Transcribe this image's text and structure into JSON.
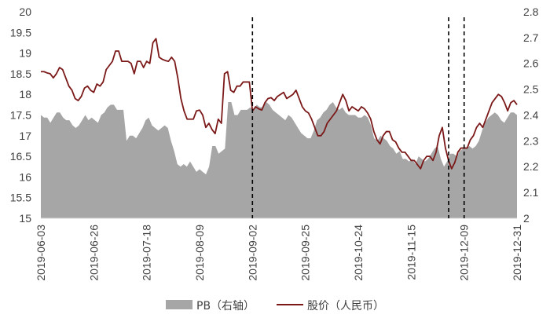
{
  "chart_data": {
    "type": "line",
    "title": "",
    "x_axis": {
      "tick_labels": [
        "2019-06-03",
        "2019-06-26",
        "2019-07-18",
        "2019-08-09",
        "2019-09-02",
        "2019-09-25",
        "2019-10-24",
        "2019-11-15",
        "2019-12-09",
        "2019-12-31"
      ]
    },
    "y_left": {
      "min": 15,
      "max": 20,
      "ticks": [
        "15",
        "15.5",
        "16",
        "16.5",
        "17",
        "17.5",
        "18",
        "18.5",
        "19",
        "19.5",
        "20"
      ]
    },
    "y_right": {
      "min": 2,
      "max": 2.8,
      "ticks": [
        "2",
        "2.1",
        "2.2",
        "2.3",
        "2.4",
        "2.5",
        "2.6",
        "2.7",
        "2.8"
      ]
    },
    "vertical_markers_at_date": [
      "2019-09-02",
      "2019-12-02",
      "2019-12-09"
    ],
    "series": [
      {
        "name": "PB（右轴）",
        "kind": "area",
        "axis": "right",
        "color": "#a6a6a6",
        "values": [
          2.4,
          2.39,
          2.39,
          2.37,
          2.39,
          2.41,
          2.41,
          2.39,
          2.38,
          2.38,
          2.36,
          2.35,
          2.36,
          2.38,
          2.4,
          2.38,
          2.39,
          2.38,
          2.37,
          2.4,
          2.41,
          2.43,
          2.44,
          2.44,
          2.42,
          2.42,
          2.42,
          2.3,
          2.32,
          2.32,
          2.31,
          2.33,
          2.35,
          2.38,
          2.39,
          2.36,
          2.35,
          2.34,
          2.35,
          2.36,
          2.35,
          2.3,
          2.26,
          2.21,
          2.2,
          2.21,
          2.2,
          2.22,
          2.2,
          2.18,
          2.19,
          2.18,
          2.17,
          2.2,
          2.28,
          2.28,
          2.25,
          2.26,
          2.27,
          2.45,
          2.45,
          2.4,
          2.4,
          2.42,
          2.42,
          2.42,
          2.43,
          2.42,
          2.44,
          2.43,
          2.43,
          2.45,
          2.44,
          2.42,
          2.41,
          2.4,
          2.39,
          2.38,
          2.4,
          2.39,
          2.37,
          2.35,
          2.33,
          2.32,
          2.31,
          2.31,
          2.34,
          2.38,
          2.39,
          2.41,
          2.42,
          2.44,
          2.45,
          2.43,
          2.42,
          2.43,
          2.41,
          2.4,
          2.4,
          2.4,
          2.39,
          2.39,
          2.4,
          2.39,
          2.36,
          2.31,
          2.3,
          2.32,
          2.31,
          2.3,
          2.28,
          2.27,
          2.25,
          2.26,
          2.23,
          2.23,
          2.22,
          2.23,
          2.21,
          2.24,
          2.23,
          2.22,
          2.23,
          2.25,
          2.27,
          2.28,
          2.23,
          2.2,
          2.22,
          2.25,
          2.25,
          2.24,
          2.26,
          2.27,
          2.27,
          2.28,
          2.27,
          2.28,
          2.3,
          2.34,
          2.37,
          2.39,
          2.4,
          2.41,
          2.4,
          2.38,
          2.37,
          2.39,
          2.41,
          2.41,
          2.4
        ]
      },
      {
        "name": "股价（人民币）",
        "kind": "line",
        "axis": "left",
        "color": "#7b1818",
        "values": [
          18.55,
          18.55,
          18.52,
          18.5,
          18.4,
          18.5,
          18.65,
          18.6,
          18.4,
          18.2,
          18.1,
          17.9,
          17.85,
          17.95,
          18.15,
          18.2,
          18.1,
          18.05,
          18.25,
          18.2,
          18.3,
          18.6,
          18.7,
          18.8,
          19.05,
          19.05,
          18.8,
          18.8,
          18.8,
          18.75,
          18.5,
          18.8,
          18.8,
          18.65,
          18.8,
          18.75,
          19.25,
          19.35,
          18.9,
          18.85,
          18.82,
          18.8,
          18.9,
          18.8,
          18.4,
          17.9,
          17.6,
          17.4,
          17.4,
          17.4,
          17.6,
          17.62,
          17.5,
          17.2,
          17.3,
          17.15,
          17.05,
          17.4,
          17.3,
          18.5,
          18.55,
          18.1,
          18.05,
          18.2,
          18.2,
          18.3,
          18.3,
          18.3,
          17.6,
          17.7,
          17.65,
          17.62,
          17.8,
          17.9,
          17.92,
          17.85,
          17.95,
          18.0,
          18.05,
          17.9,
          17.95,
          18.0,
          18.1,
          17.9,
          17.7,
          17.6,
          17.55,
          17.4,
          17.2,
          17.0,
          17.0,
          17.1,
          17.3,
          17.4,
          17.5,
          17.6,
          17.8,
          18.0,
          17.85,
          17.6,
          17.7,
          17.65,
          17.6,
          17.7,
          17.65,
          17.55,
          17.4,
          17.1,
          16.9,
          16.8,
          17.0,
          17.1,
          17.1,
          16.9,
          16.85,
          16.7,
          16.6,
          16.6,
          16.5,
          16.4,
          16.4,
          16.3,
          16.2,
          16.4,
          16.5,
          16.5,
          16.4,
          16.6,
          17.0,
          17.2,
          16.7,
          16.4,
          16.2,
          16.35,
          16.6,
          16.7,
          16.7,
          16.7,
          16.9,
          17.0,
          17.2,
          17.3,
          17.2,
          17.4,
          17.6,
          17.8,
          17.9,
          18.0,
          17.95,
          17.8,
          17.6,
          17.8,
          17.85,
          17.75
        ]
      }
    ],
    "legend": {
      "position": "bottom-center"
    }
  }
}
